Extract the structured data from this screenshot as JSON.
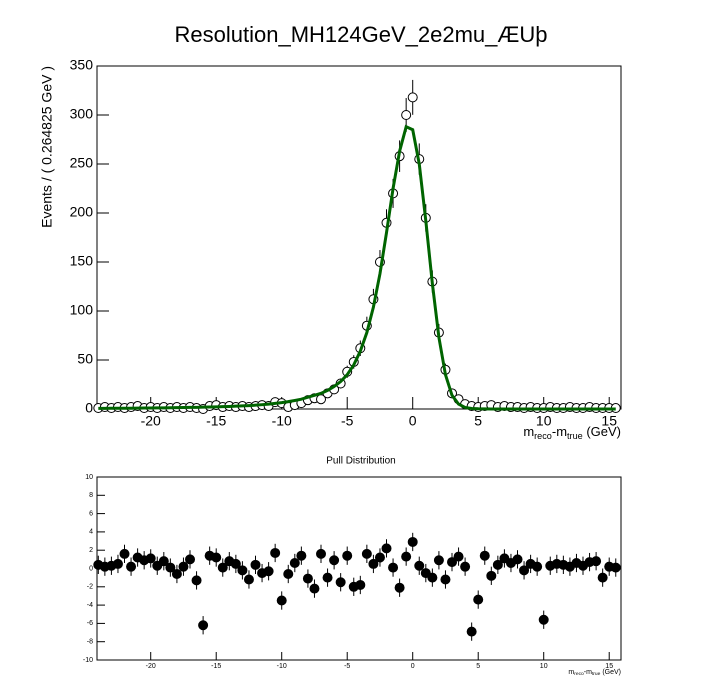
{
  "chart_data": [
    {
      "type": "errorbar",
      "title": "Resolution_MH124GeV_2e2mu_ÆUþ",
      "y_label": "Events / ( 0.264825 GeV )",
      "x_label": [
        "m",
        "reco",
        "-m",
        "true",
        " (GeV)"
      ],
      "xlim": [
        -24.1,
        15.9
      ],
      "ylim": [
        0,
        350
      ],
      "xticks": [
        -20,
        -15,
        -10,
        -5,
        0,
        5,
        10,
        15
      ],
      "yticks": [
        0,
        50,
        100,
        150,
        200,
        250,
        300,
        350
      ],
      "x": [
        -24,
        -23.5,
        -23,
        -22.5,
        -22,
        -21.5,
        -21,
        -20.5,
        -20,
        -19.5,
        -19,
        -18.5,
        -18,
        -17.5,
        -17,
        -16.5,
        -16,
        -15.5,
        -15,
        -14.5,
        -14,
        -13.5,
        -13,
        -12.5,
        -12,
        -11.5,
        -11,
        -10.5,
        -10,
        -9.5,
        -9,
        -8.5,
        -8,
        -7.5,
        -7,
        -6.5,
        -6,
        -5.5,
        -5,
        -4.5,
        -4,
        -3.5,
        -3,
        -2.5,
        -2,
        -1.5,
        -1,
        -0.5,
        0,
        0.5,
        1,
        1.5,
        2,
        2.5,
        3,
        3.5,
        4,
        4.5,
        5,
        5.5,
        6,
        6.5,
        7,
        7.5,
        8,
        8.5,
        9,
        9.5,
        10,
        10.5,
        11,
        11.5,
        12,
        12.5,
        13,
        13.5,
        14,
        14.5,
        15,
        15.5
      ],
      "series": [
        {
          "marker": "open",
          "color": "#000000",
          "values": [
            1,
            2,
            1,
            2,
            1,
            2,
            3,
            1,
            2,
            1,
            2,
            1,
            2,
            1,
            2,
            1,
            0,
            3,
            4,
            2,
            3,
            2,
            3,
            2,
            3,
            4,
            3,
            7,
            6,
            2,
            4,
            6,
            9,
            11,
            10,
            16,
            20,
            26,
            38,
            48,
            62,
            85,
            112,
            150,
            190,
            220,
            258,
            300,
            318,
            255,
            195,
            130,
            78,
            40,
            16,
            10,
            5,
            3,
            2,
            3,
            4,
            2,
            3,
            2,
            2,
            1,
            2,
            1,
            1,
            2,
            1,
            1,
            2,
            1,
            1,
            2,
            1,
            1,
            1,
            1
          ],
          "errors": [
            1,
            1.4,
            1,
            1.4,
            1,
            1.4,
            1.7,
            1,
            1.4,
            1,
            1.4,
            1,
            1.4,
            1,
            1.4,
            1,
            1,
            1.7,
            2,
            1.4,
            1.7,
            1.4,
            1.7,
            1.4,
            1.7,
            2,
            1.7,
            2.6,
            2.4,
            1.4,
            2,
            2.4,
            3,
            3.3,
            3.2,
            4,
            4.5,
            5.1,
            6.2,
            6.9,
            7.9,
            9.2,
            10.6,
            12.2,
            13.8,
            14.8,
            16.1,
            17.3,
            17.8,
            16,
            14,
            11.4,
            8.8,
            6.3,
            4,
            3.2,
            2.2,
            1.7,
            1.4,
            1.7,
            2,
            1.4,
            1.7,
            1.4,
            1.4,
            1,
            1.4,
            1,
            1,
            1.4,
            1,
            1,
            1.4,
            1,
            1,
            1.4,
            1,
            1,
            1,
            1
          ]
        },
        {
          "marker": "line",
          "color": "#006400",
          "values": [
            0.6,
            0.6,
            0.7,
            0.7,
            0.8,
            0.8,
            0.9,
            1,
            1,
            1.1,
            1.2,
            1.3,
            1.4,
            1.5,
            1.6,
            1.7,
            1.9,
            2,
            2.2,
            2.4,
            2.6,
            2.9,
            3.2,
            3.5,
            3.9,
            4.4,
            5,
            5.7,
            6.5,
            7.5,
            8.7,
            10,
            12,
            14,
            16,
            19,
            23,
            28,
            35,
            45,
            59,
            78,
            104,
            138,
            180,
            225,
            263,
            288,
            285,
            250,
            192,
            128,
            73,
            35,
            14,
            5,
            1.6,
            0.5,
            0.2,
            0.1,
            0,
            0,
            0,
            0,
            0,
            0,
            0,
            0,
            0,
            0,
            0,
            0,
            0,
            0,
            0,
            0,
            0,
            0,
            0,
            0
          ]
        }
      ]
    },
    {
      "type": "errorbar",
      "title": "Pull Distribution",
      "x_label": [
        "m",
        "reco",
        "-m",
        "true",
        " (GeV)"
      ],
      "xlim": [
        -24.1,
        15.9
      ],
      "ylim": [
        -10,
        10
      ],
      "xticks": [
        -20,
        -15,
        -10,
        -5,
        0,
        5,
        10,
        15
      ],
      "yticks": [
        -10,
        -8,
        -6,
        -4,
        -2,
        0,
        2,
        4,
        6,
        8,
        10
      ],
      "x": [
        -24,
        -23.5,
        -23,
        -22.5,
        -22,
        -21.5,
        -21,
        -20.5,
        -20,
        -19.5,
        -19,
        -18.5,
        -18,
        -17.5,
        -17,
        -16.5,
        -16,
        -15.5,
        -15,
        -14.5,
        -14,
        -13.5,
        -13,
        -12.5,
        -12,
        -11.5,
        -11,
        -10.5,
        -10,
        -9.5,
        -9,
        -8.5,
        -8,
        -7.5,
        -7,
        -6.5,
        -6,
        -5.5,
        -5,
        -4.5,
        -4,
        -3.5,
        -3,
        -2.5,
        -2,
        -1.5,
        -1,
        -0.5,
        0,
        0.5,
        1,
        1.5,
        2,
        2.5,
        3,
        3.5,
        4,
        4.5,
        5,
        5.5,
        6,
        6.5,
        7,
        7.5,
        8,
        8.5,
        9,
        9.5,
        10,
        10.5,
        11,
        11.5,
        12,
        12.5,
        13,
        13.5,
        14,
        14.5,
        15,
        15.5
      ],
      "series": [
        {
          "marker": "filled",
          "color": "#000000",
          "values": [
            0.4,
            0.2,
            0.3,
            0.5,
            1.6,
            0.2,
            1.2,
            0.9,
            1.1,
            0.3,
            0.8,
            0.1,
            -0.6,
            0.2,
            1.0,
            -1.3,
            -6.2,
            1.4,
            1.2,
            0.1,
            0.8,
            0.5,
            -0.2,
            -1.2,
            0.4,
            -0.5,
            -0.3,
            1.7,
            -3.5,
            -0.6,
            0.6,
            1.4,
            -1.1,
            -2.2,
            1.6,
            -1.0,
            0.9,
            -1.5,
            1.4,
            -2.0,
            -1.8,
            1.6,
            0.5,
            1.2,
            2.2,
            0.1,
            -2.1,
            1.3,
            2.9,
            0.3,
            -0.5,
            -1.0,
            0.9,
            -1.2,
            0.7,
            1.3,
            0.2,
            -6.9,
            -3.4,
            1.4,
            -0.8,
            0.4,
            1.1,
            0.6,
            1.0,
            -0.2,
            0.5,
            0.2,
            -5.6,
            0.3,
            0.5,
            0.4,
            0.2,
            0.6,
            0.3,
            0.7,
            0.8,
            -1.0,
            0.2,
            0.1
          ],
          "errors": [
            1,
            1,
            1,
            1,
            1,
            1,
            1,
            1,
            1,
            1,
            1,
            1,
            1,
            1,
            1,
            1,
            1,
            1,
            1,
            1,
            1,
            1,
            1,
            1,
            1,
            1,
            1,
            1,
            1,
            1,
            1,
            1,
            1,
            1,
            1,
            1,
            1,
            1,
            1,
            1,
            1,
            1,
            1,
            1,
            1,
            1,
            1,
            1,
            1,
            1,
            1,
            1,
            1,
            1,
            1,
            1,
            1,
            1,
            1,
            1,
            1,
            1,
            1,
            1,
            1,
            1,
            1,
            1,
            1,
            1,
            1,
            1,
            1,
            1,
            1,
            1,
            1,
            1,
            1,
            1
          ]
        }
      ]
    }
  ]
}
